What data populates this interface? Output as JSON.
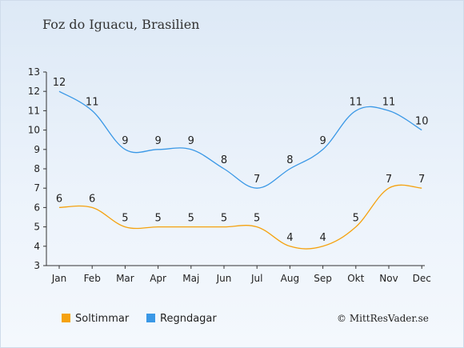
{
  "title": "Foz do Iguacu, Brasilien",
  "copyright": "© MittResVader.se",
  "chart_data": {
    "type": "line",
    "categories": [
      "Jan",
      "Feb",
      "Mar",
      "Apr",
      "Maj",
      "Jun",
      "Jul",
      "Aug",
      "Sep",
      "Okt",
      "Nov",
      "Dec"
    ],
    "series": [
      {
        "name": "Soltimmar",
        "color": "#f5a20f",
        "values": [
          6,
          6,
          5,
          5,
          5,
          5,
          5,
          4,
          4,
          5,
          7,
          7
        ]
      },
      {
        "name": "Regndagar",
        "color": "#3a98e6",
        "values": [
          12,
          11,
          9,
          9,
          9,
          8,
          7,
          8,
          9,
          11,
          11,
          10
        ]
      }
    ],
    "yticks": [
      3,
      4,
      5,
      6,
      7,
      8,
      9,
      10,
      11,
      12,
      13
    ],
    "ylim": [
      3,
      13
    ],
    "legend_position": "bottom-left",
    "grid": false
  }
}
